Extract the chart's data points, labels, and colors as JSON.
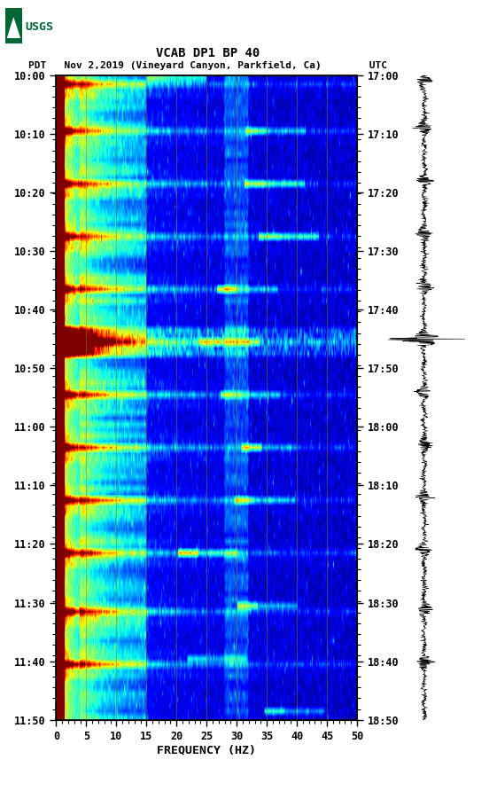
{
  "title_line1": "VCAB DP1 BP 40",
  "title_line2": "PDT   Nov 2,2019 (Vineyard Canyon, Parkfield, Ca)        UTC",
  "xlabel": "FREQUENCY (HZ)",
  "freq_min": 0,
  "freq_max": 50,
  "freq_ticks": [
    0,
    5,
    10,
    15,
    20,
    25,
    30,
    35,
    40,
    45,
    50
  ],
  "time_start_pdt": "10:00",
  "time_end_pdt": "11:50",
  "time_start_utc": "17:00",
  "time_end_utc": "18:50",
  "left_time_labels": [
    "10:00",
    "10:10",
    "10:20",
    "10:30",
    "10:40",
    "10:50",
    "11:00",
    "11:10",
    "11:20",
    "11:30",
    "11:40",
    "11:50"
  ],
  "right_time_labels": [
    "17:00",
    "17:10",
    "17:20",
    "17:30",
    "17:40",
    "17:50",
    "18:00",
    "18:10",
    "18:20",
    "18:30",
    "18:40",
    "18:50"
  ],
  "background_color": "#ffffff",
  "fig_width": 5.52,
  "fig_height": 8.92,
  "dpi": 100,
  "usgs_color": "#006633",
  "n_time": 110,
  "n_freq": 300
}
